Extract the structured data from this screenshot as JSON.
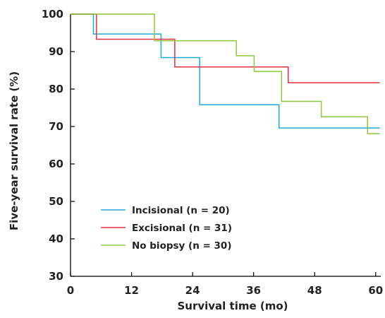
{
  "chart_data": {
    "type": "line",
    "xlabel": "Survival time (mo)",
    "ylabel": "Five-year survival rate (%)",
    "xlim": [
      0,
      61
    ],
    "ylim": [
      30,
      100
    ],
    "xticks": [
      0,
      12,
      24,
      36,
      48,
      60
    ],
    "yticks": [
      30,
      40,
      50,
      60,
      70,
      80,
      90,
      100
    ],
    "grid": false,
    "legend": "bottom-left",
    "series": [
      {
        "name": "Incisional (n = 20)",
        "color": "#1eaadf",
        "steps": [
          [
            0,
            100
          ],
          [
            4.5,
            94.7
          ],
          [
            17.8,
            88.4
          ],
          [
            24.2,
            88.4
          ],
          [
            25.4,
            75.8
          ],
          [
            41.0,
            69.6
          ],
          [
            60.8,
            69.6
          ]
        ]
      },
      {
        "name": "Excisional (n = 31)",
        "color": "#e0323c",
        "steps": [
          [
            0,
            100
          ],
          [
            5.1,
            93.3
          ],
          [
            18.5,
            93.3
          ],
          [
            20.5,
            85.9
          ],
          [
            41.8,
            85.9
          ],
          [
            42.8,
            81.7
          ],
          [
            60.8,
            81.7
          ]
        ]
      },
      {
        "name": "No biopsy (n = 30)",
        "color": "#8dc63f",
        "steps": [
          [
            0,
            100
          ],
          [
            15.5,
            100
          ],
          [
            16.5,
            92.9
          ],
          [
            32.3,
            92.9
          ],
          [
            32.6,
            88.9
          ],
          [
            35.8,
            88.9
          ],
          [
            36.1,
            84.7
          ],
          [
            40.0,
            84.7
          ],
          [
            41.5,
            76.7
          ],
          [
            48.8,
            76.7
          ],
          [
            49.3,
            72.6
          ],
          [
            57.9,
            72.6
          ],
          [
            58.4,
            68.1
          ],
          [
            60.8,
            68.1
          ]
        ]
      }
    ]
  }
}
